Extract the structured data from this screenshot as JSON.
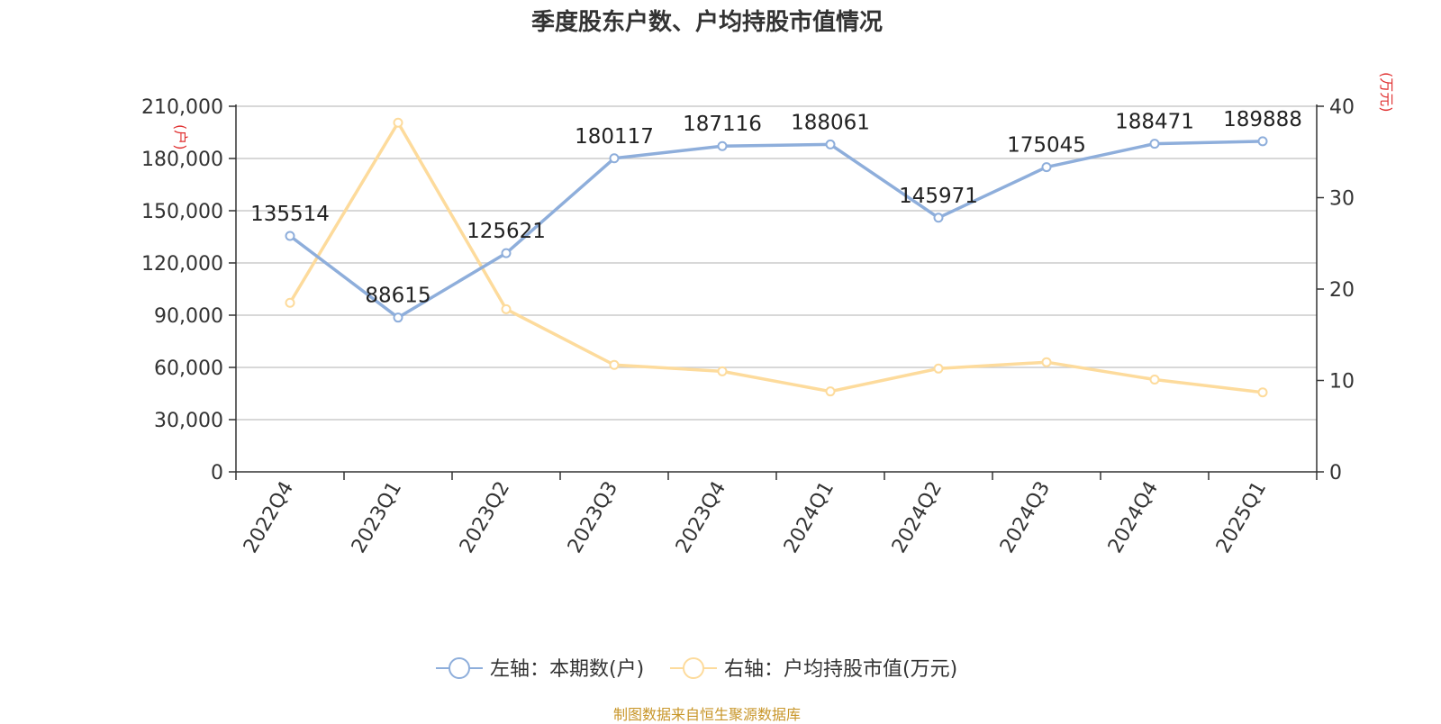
{
  "chart_data": {
    "type": "line",
    "title": "季度股东户数、户均持股市值情况",
    "categories": [
      "2022Q4",
      "2023Q1",
      "2023Q2",
      "2023Q3",
      "2023Q4",
      "2024Q1",
      "2024Q2",
      "2024Q3",
      "2024Q4",
      "2025Q1"
    ],
    "left_axis": {
      "unit": "(户)",
      "ylim": [
        0,
        210000
      ],
      "ticks": [
        0,
        30000,
        60000,
        90000,
        120000,
        150000,
        180000,
        210000
      ],
      "tick_labels": [
        "0",
        "30,000",
        "60,000",
        "90,000",
        "120,000",
        "150,000",
        "180,000",
        "210,000"
      ]
    },
    "right_axis": {
      "unit": "(万元)",
      "ylim": [
        0,
        40
      ],
      "ticks": [
        0,
        10,
        20,
        30,
        40
      ],
      "tick_labels": [
        "0",
        "10",
        "20",
        "30",
        "40"
      ]
    },
    "series": [
      {
        "name": "左轴：本期数(户)",
        "axis": "left",
        "color": "#8eaedb",
        "values": [
          135514,
          88615,
          125621,
          180117,
          187116,
          188061,
          145971,
          175045,
          188471,
          189888
        ],
        "data_labels": [
          "135514",
          "88615",
          "125621",
          "180117",
          "187116",
          "188061",
          "145971",
          "175045",
          "188471",
          "189888"
        ]
      },
      {
        "name": "右轴：户均持股市值(万元)",
        "axis": "right",
        "color": "#fddb9c",
        "values": [
          18.5,
          38.2,
          17.8,
          11.7,
          11.0,
          8.8,
          11.3,
          12.0,
          10.1,
          8.7
        ]
      }
    ],
    "grid": true,
    "legend_position": "bottom"
  },
  "footer": "制图数据来自恒生聚源数据库"
}
